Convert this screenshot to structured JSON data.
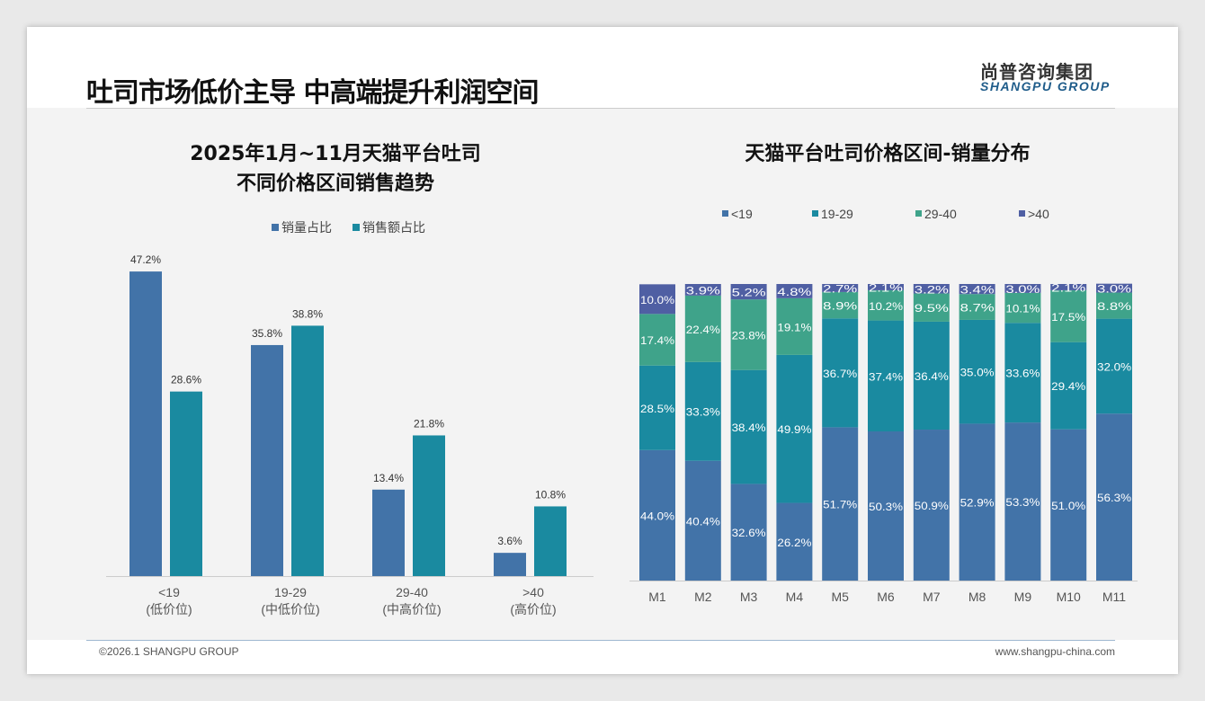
{
  "header": {
    "title": "吐司市场低价主导 中高端提升利润空间",
    "logo_cn": "尚普咨询集团",
    "logo_en": "SHANGPU GROUP"
  },
  "footer": {
    "copyright": "©2026.1 SHANGPU GROUP",
    "website": "www.shangpu-china.com"
  },
  "colors": {
    "blue": "#4273a8",
    "teal": "#1a8aa0",
    "green": "#3fa38a",
    "purple": "#4f5fa3"
  },
  "chart_data": [
    {
      "type": "bar",
      "title_line1": "2025年1月~11月天猫平台吐司",
      "title_line2": "不同价格区间销售趋势",
      "categories": [
        "<19",
        "19-29",
        "29-40",
        ">40"
      ],
      "category_sub": [
        "(低价位)",
        "(中低价位)",
        "(中高价位)",
        "(高价位)"
      ],
      "series": [
        {
          "name": "销量占比",
          "values": [
            47.2,
            35.8,
            13.4,
            3.6
          ],
          "labels": [
            "47.2%",
            "35.8%",
            "13.4%",
            "3.6%"
          ]
        },
        {
          "name": "销售额占比",
          "values": [
            28.6,
            38.8,
            21.8,
            10.8
          ],
          "labels": [
            "28.6%",
            "38.8%",
            "21.8%",
            "10.8%"
          ]
        }
      ],
      "unit": "%",
      "legend": "top"
    },
    {
      "type": "bar",
      "stacked": true,
      "title": "天猫平台吐司价格区间-销量分布",
      "categories": [
        "M1",
        "M2",
        "M3",
        "M4",
        "M5",
        "M6",
        "M7",
        "M8",
        "M9",
        "M10",
        "M11"
      ],
      "series": [
        {
          "name": "<19",
          "values": [
            44.0,
            40.4,
            32.6,
            26.2,
            51.7,
            50.3,
            50.9,
            52.9,
            53.3,
            51.0,
            56.3
          ]
        },
        {
          "name": "19-29",
          "values": [
            28.5,
            33.3,
            38.4,
            49.9,
            36.7,
            37.4,
            36.4,
            35.0,
            33.6,
            29.4,
            32.0
          ]
        },
        {
          "name": "29-40",
          "values": [
            17.4,
            22.4,
            23.8,
            19.1,
            8.9,
            10.2,
            9.5,
            8.7,
            10.1,
            17.5,
            8.8
          ]
        },
        {
          "name": ">40",
          "values": [
            10.0,
            3.9,
            5.2,
            4.8,
            2.7,
            2.1,
            3.2,
            3.4,
            3.0,
            2.1,
            3.0
          ]
        }
      ],
      "unit": "%",
      "legend": "top"
    }
  ]
}
